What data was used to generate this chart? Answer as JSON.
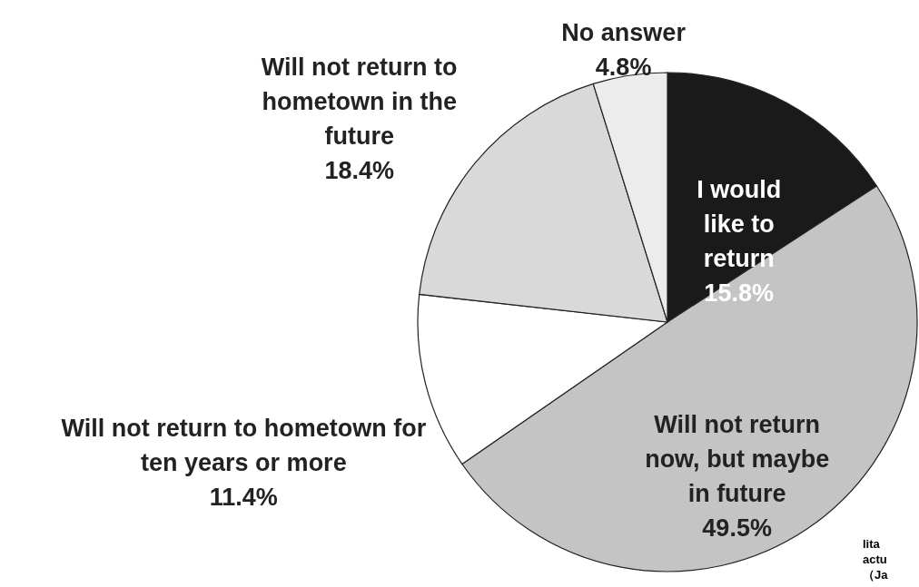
{
  "chart_data": {
    "type": "pie",
    "categories": [
      "I would like to return",
      "Will not return now, but maybe in future",
      "Will not return to hometown for ten years or more",
      "Will not return to hometown in the future",
      "No answer"
    ],
    "values": [
      15.8,
      49.5,
      11.4,
      18.4,
      4.8
    ],
    "colors": [
      "#1a1a1a",
      "#c4c4c4",
      "#ffffff",
      "#d9d9d9",
      "#ececec"
    ],
    "value_labels": [
      "15.8%",
      "49.5%",
      "11.4%",
      "18.4%",
      "4.8%"
    ],
    "annotations": [
      "lita",
      "actu",
      "（Ja"
    ]
  }
}
